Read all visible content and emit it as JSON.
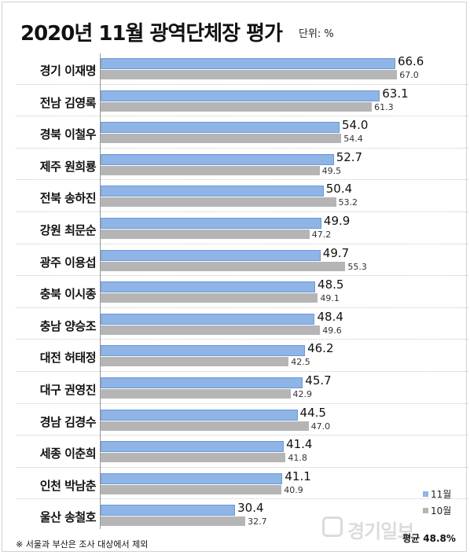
{
  "title": "2020년 11월 광역단체장 평가",
  "unit": "단위: %",
  "legend": {
    "current": "11월",
    "previous": "10월"
  },
  "footnote": "※ 서울과 부산은 조사 대상에서 제외",
  "average": "평균 48.8%",
  "watermark": "경기일보",
  "colors": {
    "current": "#8fb4e6",
    "previous": "#b5b5b5"
  },
  "chart_data": {
    "type": "bar",
    "orientation": "horizontal",
    "title": "2020년 11월 광역단체장 평가",
    "xlim": [
      0,
      78
    ],
    "grid": false,
    "legend_position": "bottom-right",
    "categories": [
      "경기 이재명",
      "전남 김영록",
      "경북 이철우",
      "제주 원희룡",
      "전북 송하진",
      "강원 최문순",
      "광주 이용섭",
      "충북 이시종",
      "충남 양승조",
      "대전 허태정",
      "대구 권영진",
      "경남 김경수",
      "세종 이춘희",
      "인천 박남춘",
      "울산 송철호"
    ],
    "series": [
      {
        "name": "11월",
        "values": [
          66.6,
          63.1,
          54.0,
          52.7,
          50.4,
          49.9,
          49.7,
          48.5,
          48.4,
          46.2,
          45.7,
          44.5,
          41.4,
          41.1,
          30.4
        ]
      },
      {
        "name": "10월",
        "values": [
          67.0,
          61.3,
          54.4,
          49.5,
          53.2,
          47.2,
          55.3,
          49.1,
          49.6,
          42.5,
          42.9,
          47.0,
          41.8,
          40.9,
          32.7
        ]
      }
    ]
  }
}
